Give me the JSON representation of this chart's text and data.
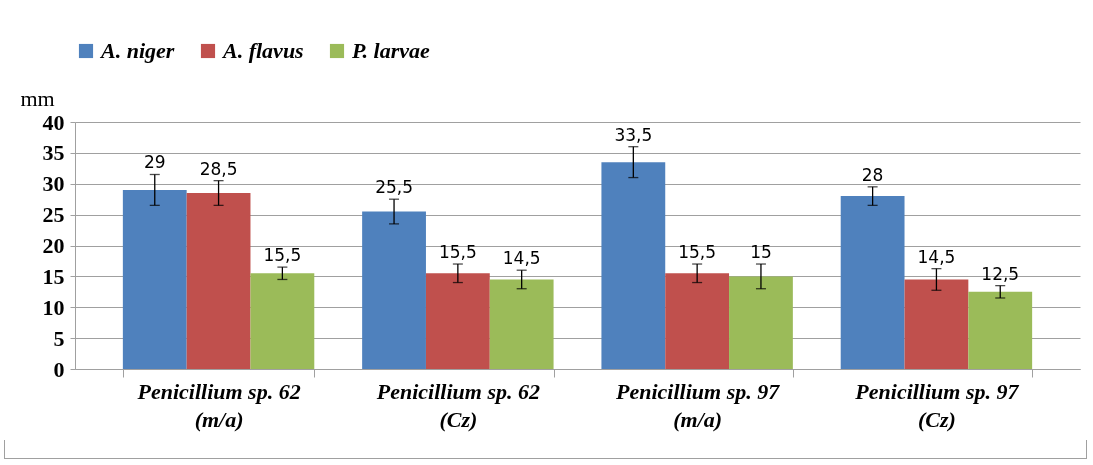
{
  "chart_data": {
    "type": "bar",
    "ylabel": "mm",
    "categories": [
      "Penicillium sp. 62 (m/a)",
      "Penicillium sp. 62 (Cz)",
      "Penicillium sp. 97 (m/a)",
      "Penicillium sp. 97 (Cz)"
    ],
    "series": [
      {
        "name": "A. niger",
        "color": "#4f81bd",
        "values": [
          29,
          25.5,
          33.5,
          28
        ],
        "errors": [
          2.5,
          2,
          2.5,
          1.5
        ],
        "value_labels": [
          "29",
          "25,5",
          "33,5",
          "28"
        ]
      },
      {
        "name": "A. flavus",
        "color": "#c0504d",
        "values": [
          28.5,
          15.5,
          15.5,
          14.5
        ],
        "errors": [
          2,
          1.5,
          1.5,
          1.75
        ],
        "value_labels": [
          "28,5",
          "15,5",
          "15,5",
          "14,5"
        ]
      },
      {
        "name": "P. larvae",
        "color": "#9bbb59",
        "values": [
          15.5,
          14.5,
          15,
          12.5
        ],
        "errors": [
          1,
          1.5,
          2,
          1
        ],
        "value_labels": [
          "15,5",
          "14,5",
          "15",
          "12,5"
        ]
      }
    ],
    "ylim": [
      0,
      40
    ],
    "yticks": [
      0,
      5,
      10,
      15,
      20,
      25,
      30,
      35,
      40
    ],
    "grid": "y",
    "legend": "top"
  }
}
